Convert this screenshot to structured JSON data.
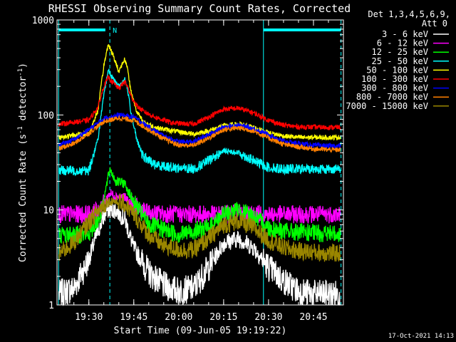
{
  "chart_data": {
    "type": "line",
    "title": "RHESSI Observing Summary Count Rates, Corrected",
    "xlabel": "Start Time (09-Jun-05 19:19:22)",
    "ylabel": "Corrected Count Rate (s⁻¹ detector⁻¹)",
    "ylabel_parts": [
      "Corrected Count Rate (s",
      "-1",
      " detector",
      "-1",
      ")"
    ],
    "yscale": "log",
    "ylim": [
      1,
      1000
    ],
    "xlim_minutes": [
      19.36,
      55.0
    ],
    "x_ticks": [
      {
        "label": "19:30",
        "t": 30
      },
      {
        "label": "19:45",
        "t": 45
      },
      {
        "label": "20:00",
        "t": 60
      },
      {
        "label": "20:15",
        "t": 75
      },
      {
        "label": "20:30",
        "t": 90
      },
      {
        "label": "20:45",
        "t": 105
      }
    ],
    "y_ticks": [
      {
        "label": "1",
        "v": 1
      },
      {
        "label": "10",
        "v": 10
      },
      {
        "label": "100",
        "v": 100
      },
      {
        "label": "1000",
        "v": 1000
      }
    ],
    "legend_header": [
      "Det 1,3,4,5,6,9,",
      "Att 0"
    ],
    "legend_placement": "right",
    "flare_marker": "N",
    "flare_marker_t": 37,
    "vertical_lines": [
      {
        "t": 19.9,
        "style": "solid"
      },
      {
        "t": 37.0,
        "style": "dashed"
      },
      {
        "t": 88.3,
        "style": "solid"
      },
      {
        "t": 114.2,
        "style": "dashed"
      }
    ],
    "night_bars": [
      [
        19.9,
        35.5
      ],
      [
        88.3,
        114.2
      ]
    ],
    "series": [
      {
        "name": "3 - 6 keV",
        "color": "#ffffff",
        "x": [
          20,
          25,
          30,
          33,
          36,
          39,
          42,
          45,
          50,
          55,
          60,
          65,
          70,
          75,
          80,
          85,
          90,
          95,
          100,
          105,
          110,
          114
        ],
        "y": [
          1.3,
          1.5,
          3.0,
          6.0,
          10.0,
          10.0,
          8.0,
          4.0,
          2.2,
          1.6,
          1.4,
          1.5,
          2.5,
          4.5,
          5.0,
          4.0,
          2.5,
          1.8,
          1.4,
          1.3,
          1.3,
          1.3
        ]
      },
      {
        "name": "6 - 12 keV",
        "color": "#ff00ff",
        "x": [
          20,
          30,
          34,
          37,
          39,
          42,
          45,
          50,
          60,
          70,
          80,
          90,
          100,
          114
        ],
        "y": [
          9.0,
          9.0,
          10.5,
          15.0,
          14.0,
          13.5,
          11.0,
          9.2,
          9.0,
          9.0,
          9.2,
          9.0,
          9.0,
          9.0
        ]
      },
      {
        "name": "12 - 25 keV",
        "color": "#00ff00",
        "x": [
          20,
          30,
          34,
          37,
          39,
          42,
          45,
          50,
          60,
          70,
          75,
          80,
          85,
          90,
          95,
          100,
          114
        ],
        "y": [
          5.5,
          5.5,
          9.0,
          27.0,
          20.0,
          19.0,
          12.0,
          7.0,
          5.5,
          6.5,
          9.0,
          10.0,
          8.5,
          6.5,
          6.0,
          5.8,
          5.6
        ]
      },
      {
        "name": "25 - 50 keV",
        "color": "#00ffff",
        "x": [
          20,
          30,
          33,
          35,
          36.5,
          38,
          40,
          42,
          43,
          44,
          46,
          48,
          52,
          58,
          65,
          70,
          75,
          80,
          85,
          90,
          95,
          100,
          110,
          114
        ],
        "y": [
          26,
          26,
          55,
          160,
          300,
          240,
          200,
          240,
          180,
          110,
          55,
          37,
          30,
          28,
          27,
          33,
          42,
          40,
          33,
          28,
          27,
          27,
          27,
          27
        ]
      },
      {
        "name": "50 - 100 keV",
        "color": "#ffff00",
        "x": [
          20,
          30,
          33,
          35,
          36.5,
          38,
          40,
          42,
          43,
          44,
          46,
          48,
          52,
          58,
          65,
          70,
          75,
          80,
          85,
          90,
          95,
          100,
          110,
          114
        ],
        "y": [
          58,
          64,
          110,
          330,
          560,
          430,
          290,
          390,
          300,
          180,
          110,
          85,
          74,
          68,
          63,
          68,
          77,
          80,
          74,
          65,
          60,
          58,
          58,
          58
        ]
      },
      {
        "name": "100 - 300 keV",
        "color": "#ff0000",
        "x": [
          20,
          30,
          33,
          35,
          36.5,
          38,
          40,
          42,
          43,
          44,
          46,
          48,
          52,
          58,
          65,
          70,
          75,
          80,
          85,
          90,
          95,
          100,
          110,
          114
        ],
        "y": [
          80,
          88,
          120,
          200,
          250,
          220,
          190,
          225,
          195,
          160,
          125,
          110,
          95,
          82,
          80,
          95,
          115,
          118,
          105,
          88,
          78,
          75,
          74,
          74
        ]
      },
      {
        "name": "300 - 800 keV",
        "color": "#0000ff",
        "x": [
          20,
          25,
          30,
          35,
          40,
          45,
          50,
          55,
          60,
          65,
          70,
          75,
          80,
          85,
          90,
          95,
          100,
          105,
          110,
          114
        ],
        "y": [
          48,
          55,
          70,
          92,
          100,
          95,
          75,
          60,
          52,
          52,
          62,
          75,
          78,
          72,
          62,
          53,
          50,
          48,
          47,
          47
        ]
      },
      {
        "name": "800 - 7000 keV",
        "color": "#ff7f00",
        "x": [
          20,
          25,
          30,
          35,
          40,
          45,
          50,
          55,
          60,
          65,
          70,
          75,
          80,
          85,
          90,
          95,
          100,
          105,
          110,
          114
        ],
        "y": [
          44,
          50,
          64,
          85,
          93,
          88,
          70,
          56,
          48,
          48,
          57,
          70,
          73,
          68,
          57,
          49,
          46,
          44,
          43,
          43
        ]
      },
      {
        "name": "7000 - 15000 keV",
        "color": "#9a8600",
        "x": [
          20,
          25,
          30,
          34,
          36,
          38,
          40,
          42,
          45,
          50,
          55,
          60,
          65,
          70,
          75,
          80,
          85,
          90,
          95,
          100,
          105,
          110,
          114
        ],
        "y": [
          3.5,
          4.5,
          7.5,
          10.5,
          12.0,
          12.5,
          12.0,
          11.5,
          9.0,
          5.5,
          4.2,
          3.8,
          3.8,
          5.0,
          7.0,
          7.6,
          6.5,
          4.8,
          4.0,
          3.7,
          3.6,
          3.5,
          3.5
        ]
      }
    ]
  },
  "footer_date": "17-Oct-2021 14:13"
}
